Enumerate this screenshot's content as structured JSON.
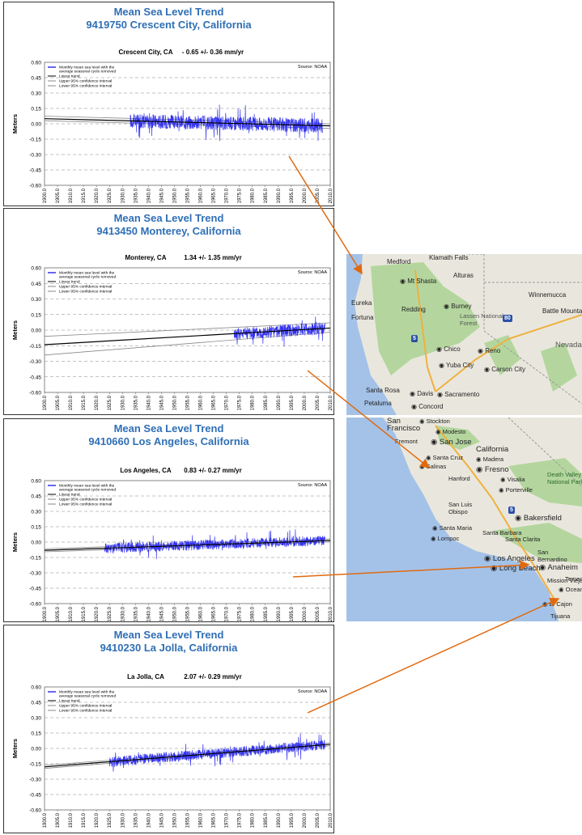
{
  "panels": [
    {
      "title": "Mean Sea Level Trend",
      "station": "9419750 Crescent City, California",
      "subtitle_station": "Crescent City, CA",
      "rate": "- 0.65 +/- 0.36 mm/yr",
      "source": "Source: NOAA"
    },
    {
      "title": "Mean Sea Level Trend",
      "station": "9413450 Monterey, California",
      "subtitle_station": "Monterey, CA",
      "rate": "1.34 +/- 1.35 mm/yr",
      "source": "Source: NOAA"
    },
    {
      "title": "Mean Sea Level Trend",
      "station": "9410660 Los Angeles, California",
      "subtitle_station": "Los Angeles, CA",
      "rate": "0.83 +/- 0.27 mm/yr",
      "source": "Source: NOAA"
    },
    {
      "title": "Mean Sea Level Trend",
      "station": "9410230 La Jolla, California",
      "subtitle_station": "La Jolla, CA",
      "rate": "2.07 +/- 0.29 mm/yr",
      "source": "Source: NOAA"
    }
  ],
  "legend": [
    "Monthly mean sea level with the average seasonal cycle removed",
    "Linear trend",
    "Upper 95% confidence interval",
    "Lower 95% confidence interval"
  ],
  "chart_data": [
    {
      "type": "line",
      "title": "Crescent City, CA",
      "ylabel": "Meters",
      "ylim": [
        -0.6,
        0.6
      ],
      "xlim": [
        1900,
        2010
      ],
      "yticks": [
        "0.60",
        "0.45",
        "0.30",
        "0.15",
        "0.00",
        "-0.15",
        "-0.30",
        "-0.45",
        "-0.60"
      ],
      "xticks": [
        "1900.0",
        "1905.0",
        "1910.0",
        "1915.0",
        "1920.0",
        "1925.0",
        "1930.0",
        "1935.0",
        "1940.0",
        "1945.0",
        "1950.0",
        "1955.0",
        "1960.0",
        "1965.0",
        "1970.0",
        "1975.0",
        "1980.0",
        "1985.0",
        "1990.0",
        "1995.0",
        "2000.0",
        "2005.0",
        "2010.0"
      ],
      "series": [
        {
          "name": "Monthly mean sea level with the average seasonal cycle removed",
          "x_range": [
            1933,
            2007
          ],
          "noise": 0.07
        },
        {
          "name": "Linear trend",
          "points": [
            [
              1900,
              0.05
            ],
            [
              2010,
              -0.02
            ]
          ]
        },
        {
          "name": "Upper 95% confidence interval",
          "points": [
            [
              1900,
              0.075
            ],
            [
              2010,
              0.0
            ]
          ]
        },
        {
          "name": "Lower 95% confidence interval",
          "points": [
            [
              1900,
              0.03
            ],
            [
              2010,
              -0.045
            ]
          ]
        }
      ],
      "grid": true,
      "legend_position": "top-left"
    },
    {
      "type": "line",
      "title": "Monterey, CA",
      "ylabel": "Meters",
      "ylim": [
        -0.6,
        0.6
      ],
      "xlim": [
        1900,
        2010
      ],
      "yticks": [
        "0.60",
        "0.45",
        "0.30",
        "0.15",
        "0.00",
        "-0.15",
        "-0.30",
        "-0.45",
        "-0.60"
      ],
      "xticks": [
        "1900.0",
        "1905.0",
        "1910.0",
        "1915.0",
        "1920.0",
        "1925.0",
        "1930.0",
        "1935.0",
        "1940.0",
        "1945.0",
        "1950.0",
        "1955.0",
        "1960.0",
        "1965.0",
        "1970.0",
        "1975.0",
        "1980.0",
        "1985.0",
        "1990.0",
        "1995.0",
        "2000.0",
        "2005.0",
        "2010.0"
      ],
      "series": [
        {
          "name": "Monthly mean sea level with the average seasonal cycle removed",
          "x_range": [
            1973,
            2008
          ],
          "noise": 0.06
        },
        {
          "name": "Linear trend",
          "points": [
            [
              1900,
              -0.14
            ],
            [
              2010,
              0.02
            ]
          ]
        },
        {
          "name": "Upper 95% confidence interval",
          "points": [
            [
              1900,
              -0.06
            ],
            [
              2010,
              0.07
            ]
          ]
        },
        {
          "name": "Lower 95% confidence interval",
          "points": [
            [
              1900,
              -0.24
            ],
            [
              2010,
              -0.02
            ]
          ]
        }
      ],
      "grid": true,
      "legend_position": "top-left"
    },
    {
      "type": "line",
      "title": "Los Angeles, CA",
      "ylabel": "Meters",
      "ylim": [
        -0.6,
        0.6
      ],
      "xlim": [
        1900,
        2010
      ],
      "yticks": [
        "0.60",
        "0.45",
        "0.30",
        "0.15",
        "0.00",
        "-0.15",
        "-0.30",
        "-0.45",
        "-0.60"
      ],
      "xticks": [
        "1900.0",
        "1905.0",
        "1910.0",
        "1915.0",
        "1920.0",
        "1925.0",
        "1930.0",
        "1935.0",
        "1940.0",
        "1945.0",
        "1950.0",
        "1955.0",
        "1960.0",
        "1965.0",
        "1970.0",
        "1975.0",
        "1980.0",
        "1985.0",
        "1990.0",
        "1995.0",
        "2000.0",
        "2005.0",
        "2010.0"
      ],
      "series": [
        {
          "name": "Monthly mean sea level with the average seasonal cycle removed",
          "x_range": [
            1923,
            2008
          ],
          "noise": 0.05
        },
        {
          "name": "Linear trend",
          "points": [
            [
              1900,
              -0.08
            ],
            [
              2010,
              0.015
            ]
          ]
        },
        {
          "name": "Upper 95% confidence interval",
          "points": [
            [
              1900,
              -0.065
            ],
            [
              2010,
              0.03
            ]
          ]
        },
        {
          "name": "Lower 95% confidence interval",
          "points": [
            [
              1900,
              -0.095
            ],
            [
              2010,
              0.0
            ]
          ]
        }
      ],
      "grid": true,
      "legend_position": "top-left"
    },
    {
      "type": "line",
      "title": "La Jolla, CA",
      "ylabel": "Meters",
      "ylim": [
        -0.6,
        0.6
      ],
      "xlim": [
        1900,
        2010
      ],
      "yticks": [
        "0.60",
        "0.45",
        "0.30",
        "0.15",
        "0.00",
        "-0.15",
        "-0.30",
        "-0.45",
        "-0.60"
      ],
      "xticks": [
        "1900.0",
        "1905.0",
        "1910.0",
        "1915.0",
        "1920.0",
        "1925.0",
        "1930.0",
        "1935.0",
        "1940.0",
        "1945.0",
        "1950.0",
        "1955.0",
        "1960.0",
        "1965.0",
        "1970.0",
        "1975.0",
        "1980.0",
        "1985.0",
        "1990.0",
        "1995.0",
        "2000.0",
        "2005.0",
        "2010.0"
      ],
      "series": [
        {
          "name": "Monthly mean sea level with the average seasonal cycle removed",
          "x_range": [
            1925,
            2008
          ],
          "noise": 0.05
        },
        {
          "name": "Linear trend",
          "points": [
            [
              1900,
              -0.18
            ],
            [
              2010,
              0.04
            ]
          ]
        },
        {
          "name": "Upper 95% confidence interval",
          "points": [
            [
              1900,
              -0.165
            ],
            [
              2010,
              0.055
            ]
          ]
        },
        {
          "name": "Lower 95% confidence interval",
          "points": [
            [
              1900,
              -0.195
            ],
            [
              2010,
              0.025
            ]
          ]
        }
      ],
      "grid": true,
      "legend_position": "top-left"
    }
  ],
  "maps": {
    "north_labels": [
      "Medford",
      "Klamath Falls",
      "Mt Shasta",
      "Alturas",
      "Eureka",
      "Fortuna",
      "Redding",
      "Burney",
      "Lassen National Forest",
      "Winnemucca",
      "Battle Mountain",
      "Chico",
      "Reno",
      "Carson City",
      "Yuba City",
      "Santa Rosa",
      "Davis",
      "Sacramento",
      "Petaluma",
      "Concord",
      "Nevada",
      "5",
      "80"
    ],
    "south_labels": [
      "San Francisco",
      "Stockton",
      "Fremont",
      "Modesto",
      "San Jose",
      "California",
      "Santa Cruz",
      "Madera",
      "Salinas",
      "Fresno",
      "Hanford",
      "Visalia",
      "Porterville",
      "Death Valley National Park",
      "San Luis Obispo",
      "Bakersfield",
      "Santa Maria",
      "Lompoc",
      "Santa Barbara",
      "Santa Clarita",
      "San Bernardino",
      "Los Angeles",
      "Long Beach",
      "Anaheim",
      "Mission Viejo",
      "Temecula",
      "Oceanside",
      "El Cajon",
      "Tijuana",
      "5"
    ]
  },
  "colors": {
    "title": "#2f6fb5",
    "series": "#3333ee",
    "trend": "#000000",
    "ci": "#888888",
    "arrow": "#e06a10",
    "ocean": "#a4c2e8",
    "land": "#e9e7dd",
    "forest": "#b4d69e"
  }
}
